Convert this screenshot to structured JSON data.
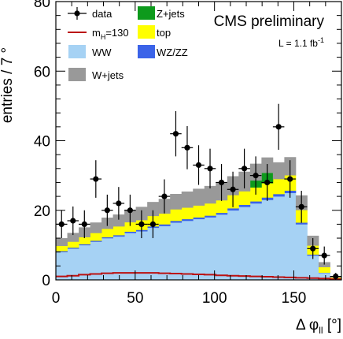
{
  "chart_data": {
    "type": "bar",
    "stacked": true,
    "annotation": "CMS preliminary",
    "luminosity": {
      "text": "L = 1.1 fb",
      "sup": "-1"
    },
    "ylabel": "entries / 7 °",
    "xlabel": {
      "main": "Δ φ",
      "sub": "ll",
      "unit": " [°]"
    },
    "xlim": [
      0,
      180
    ],
    "ylim": [
      0,
      80
    ],
    "xticks": [
      0,
      50,
      100,
      150
    ],
    "yticks": [
      0,
      20,
      40,
      60,
      80
    ],
    "bin_edges": [
      0,
      7.2,
      14.4,
      21.6,
      28.8,
      36,
      43.2,
      50.4,
      57.6,
      64.8,
      72,
      79.2,
      86.4,
      93.6,
      100.8,
      108,
      115.2,
      122.4,
      129.6,
      136.8,
      144,
      151.2,
      158.4,
      165.6,
      172.8,
      180
    ],
    "series": [
      {
        "name": "WW",
        "color": "#a6d2f4",
        "values": [
          8,
          9,
          10,
          11,
          12,
          12.5,
          13.5,
          14,
          15,
          15.5,
          16.5,
          17,
          17.5,
          18,
          18.8,
          20,
          21,
          22,
          23,
          24,
          25,
          16,
          7,
          2,
          0.3
        ]
      },
      {
        "name": "WZ/ZZ",
        "color": "#3b63e8",
        "values": [
          0.3,
          0.3,
          0.3,
          0.3,
          0.3,
          0.4,
          0.4,
          0.4,
          0.4,
          0.5,
          0.5,
          0.5,
          0.5,
          0.5,
          0.5,
          0.6,
          0.6,
          0.6,
          0.7,
          0.7,
          0.7,
          0.5,
          0.3,
          0.1,
          0
        ]
      },
      {
        "name": "top",
        "color": "#ffff00",
        "values": [
          1.5,
          1.7,
          2,
          2.2,
          2.4,
          2.5,
          2.7,
          2.8,
          3,
          3.1,
          3.3,
          3.3,
          3.4,
          3.5,
          3.6,
          3.8,
          3.9,
          4,
          4.1,
          4.3,
          4.4,
          3.6,
          2.6,
          1.6,
          0.4
        ]
      },
      {
        "name": "Z+jets",
        "color": "#0d9a1c",
        "values": [
          0,
          0,
          0,
          0,
          0,
          0,
          0,
          0,
          0,
          0,
          0,
          0,
          0,
          0,
          0,
          0,
          0,
          2,
          3,
          0,
          0,
          0,
          0,
          0,
          0
        ]
      },
      {
        "name": "W+jets",
        "color": "#999999",
        "values": [
          2.2,
          2.5,
          2.8,
          3,
          3.2,
          3.4,
          3.6,
          3.8,
          4,
          4.2,
          4.4,
          4.6,
          4.8,
          5,
          5.2,
          5.4,
          5.6,
          4.8,
          4.4,
          4.8,
          5.2,
          4.2,
          2.8,
          1.4,
          0.4
        ]
      }
    ],
    "signal": {
      "name": "m",
      "sub": "H",
      "suffix": "=130",
      "color": "#bb1111",
      "values": [
        1,
        1.2,
        1.5,
        1.7,
        1.9,
        2,
        2,
        2,
        2,
        1.9,
        1.8,
        1.7,
        1.6,
        1.5,
        1.3,
        1.2,
        1.1,
        1,
        0.9,
        0.8,
        0.7,
        0.6,
        0.5,
        0.4,
        0.2
      ]
    },
    "data": {
      "name": "data",
      "x": [
        3.6,
        10.8,
        18,
        25.2,
        32.4,
        39.6,
        46.8,
        54,
        61.2,
        68.4,
        75.6,
        82.8,
        90,
        97.2,
        104.4,
        111.6,
        118.8,
        126,
        133.2,
        140.4,
        147.6,
        154.8,
        162,
        169.2,
        176.4
      ],
      "y": [
        16,
        17,
        16,
        29,
        20,
        22,
        20,
        16,
        16,
        24,
        42,
        38,
        33,
        32,
        28,
        26,
        32,
        30,
        28,
        44,
        29,
        21,
        9,
        7,
        1
      ],
      "err": [
        4,
        4.1,
        4,
        5.4,
        4.5,
        4.7,
        4.5,
        4,
        4,
        4.9,
        6.5,
        6.2,
        5.7,
        5.7,
        5.3,
        5.1,
        5.7,
        5.5,
        5.3,
        6.6,
        5.4,
        4.6,
        3,
        2.6,
        1
      ]
    },
    "legend": [
      {
        "key": "data",
        "label": "data",
        "style": "marker"
      },
      {
        "key": "Z+jets",
        "label": "Z+jets",
        "style": "box",
        "color": "#0d9a1c"
      },
      {
        "key": "signal",
        "label": "m",
        "sub": "H",
        "suffix": "=130",
        "style": "line",
        "color": "#bb1111"
      },
      {
        "key": "top",
        "label": "top",
        "style": "box",
        "color": "#ffff00"
      },
      {
        "key": "WW",
        "label": "WW",
        "style": "box",
        "color": "#a6d2f4"
      },
      {
        "key": "WZ/ZZ",
        "label": "WZ/ZZ",
        "style": "box",
        "color": "#3b63e8"
      },
      {
        "key": "W+jets",
        "label": "W+jets",
        "style": "box",
        "color": "#999999"
      }
    ]
  }
}
